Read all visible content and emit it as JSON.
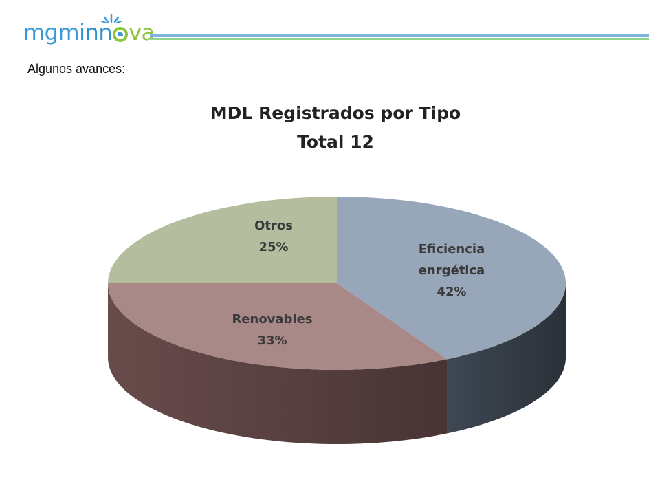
{
  "header": {
    "logo": {
      "part1": "mgm",
      "part2": "inn",
      "part3": "va"
    },
    "subtitle": "Algunos avances:"
  },
  "colors": {
    "eficiencia": "#97a6b9",
    "renovables": "#a98888",
    "otros": "#b5bd9f",
    "logo_blue": "#3a9ad9",
    "logo_green": "#8cc63f"
  },
  "chart_data": {
    "type": "pie",
    "title": "MDL Registrados por Tipo",
    "subtitle": "Total 12",
    "style": "3d",
    "slices": [
      {
        "label": "Eficiencia enrgética",
        "label_lines": [
          "Eficiencia",
          "enrgética"
        ],
        "value": 42,
        "value_label": "42%",
        "color": "#97a6b9",
        "side_color": "#414b57"
      },
      {
        "label": "Renovables",
        "label_lines": [
          "Renovables"
        ],
        "value": 33,
        "value_label": "33%",
        "color": "#a98888",
        "side_color": "#6e5050"
      },
      {
        "label": "Otros",
        "label_lines": [
          "Otros"
        ],
        "value": 25,
        "value_label": "25%",
        "color": "#b5bd9f",
        "side_color": "#7a8064"
      }
    ]
  }
}
